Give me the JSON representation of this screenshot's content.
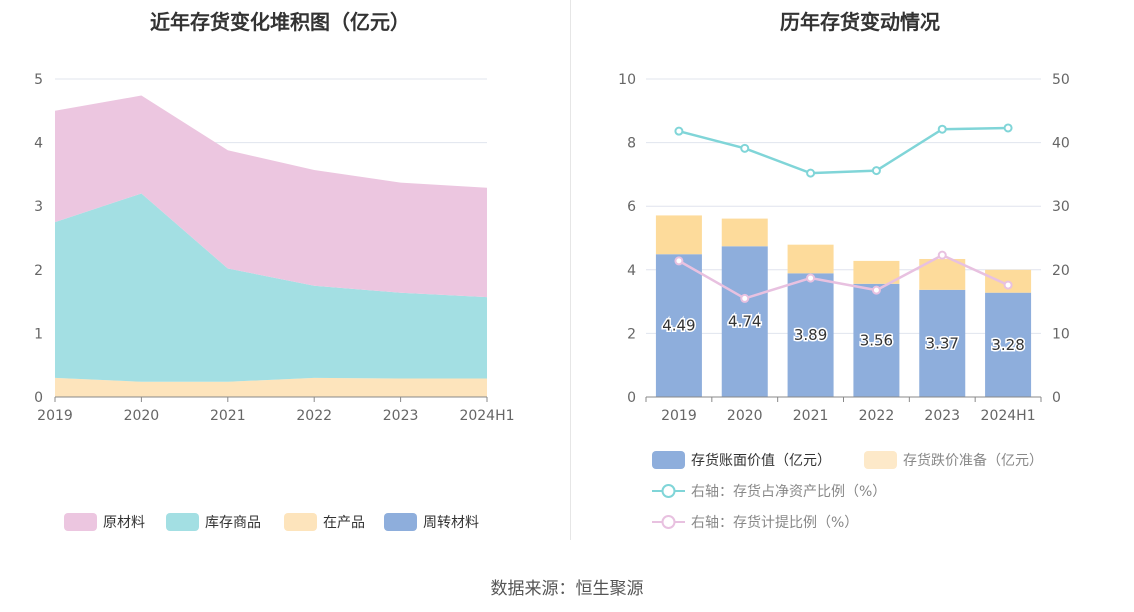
{
  "left_chart_title": "近年存货变化堆积图（亿元）",
  "right_chart_title": "历年存货变动情况",
  "source": "数据来源：恒生聚源",
  "colors": {
    "raw": "#ecc6e0",
    "finished": "#a3dfe3",
    "wip": "#fde4bc",
    "turnover": "#8eaedc",
    "book_bar": "#8eaedc",
    "impair_bar": "#fddb9b",
    "line_net": "#80d5d8",
    "line_prov": "#e8c1e0",
    "axis": "#666666",
    "grid": "#e0e4ee"
  },
  "chart_data": [
    {
      "type": "area",
      "title": "近年存货变化堆积图（亿元）",
      "categories": [
        "2019",
        "2020",
        "2021",
        "2022",
        "2023",
        "2024H1"
      ],
      "ylim": [
        0,
        5
      ],
      "yticks": [
        "0",
        "1",
        "2",
        "3",
        "4",
        "5"
      ],
      "series": [
        {
          "name": "周转材料",
          "key": "turnover",
          "values": [
            0,
            0,
            0,
            0,
            0,
            0
          ]
        },
        {
          "name": "在产品",
          "key": "wip",
          "values": [
            0.3,
            0.24,
            0.24,
            0.3,
            0.29,
            0.29
          ]
        },
        {
          "name": "库存商品",
          "key": "finished",
          "values": [
            2.45,
            2.96,
            1.78,
            1.45,
            1.35,
            1.28
          ]
        },
        {
          "name": "原材料",
          "key": "raw",
          "values": [
            1.75,
            1.54,
            1.86,
            1.82,
            1.73,
            1.72
          ]
        }
      ],
      "legend": [
        "原材料",
        "库存商品",
        "在产品",
        "周转材料"
      ],
      "legend_position": "bottom"
    },
    {
      "type": "bar",
      "title": "历年存货变动情况",
      "categories": [
        "2019",
        "2020",
        "2021",
        "2022",
        "2023",
        "2024H1"
      ],
      "ylim": [
        0,
        10
      ],
      "yticks": [
        "0",
        "2",
        "4",
        "6",
        "8",
        "10"
      ],
      "y2lim": [
        0,
        50
      ],
      "y2ticks": [
        "0",
        "10",
        "20",
        "30",
        "40",
        "50"
      ],
      "bar_series": [
        {
          "name": "存货账面价值（亿元）",
          "key": "book_bar",
          "values": [
            4.49,
            4.74,
            3.89,
            3.56,
            3.37,
            3.28
          ],
          "labels": [
            "4.49",
            "4.74",
            "3.89",
            "3.56",
            "3.37",
            "3.28"
          ]
        },
        {
          "name": "存货跌价准备（亿元）",
          "key": "impair_bar",
          "values": [
            1.22,
            0.87,
            0.9,
            0.72,
            0.97,
            0.72
          ]
        }
      ],
      "line_series": [
        {
          "name": "右轴：存货占净资产比例（%）",
          "key": "line_net",
          "values": [
            41.8,
            39.1,
            35.2,
            35.6,
            42.1,
            42.3
          ]
        },
        {
          "name": "右轴：存货计提比例（%）",
          "key": "line_prov",
          "values": [
            21.4,
            15.5,
            18.7,
            16.8,
            22.3,
            17.6
          ]
        }
      ],
      "legend_position": "bottom"
    }
  ]
}
